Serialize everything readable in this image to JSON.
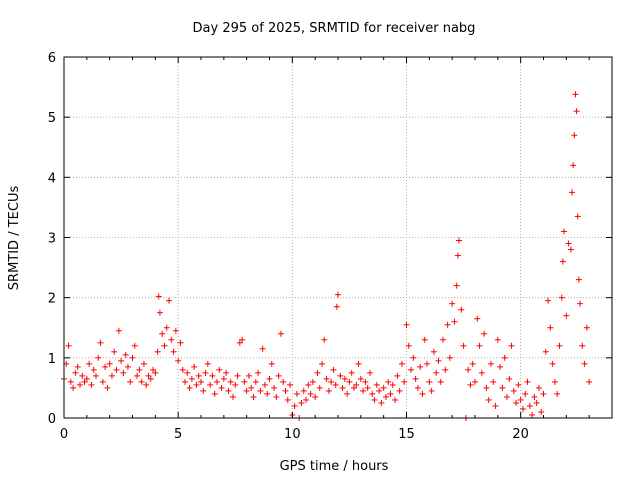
{
  "chart_data": {
    "type": "scatter",
    "title": "Day 295 of 2025, SRMTID for receiver nabg",
    "xlabel": "GPS time / hours",
    "ylabel": "SRMTID / TECUs",
    "xlim": [
      0,
      24
    ],
    "ylim": [
      0,
      6
    ],
    "x_ticks": [
      "0",
      "5",
      "10",
      "15",
      "20"
    ],
    "y_ticks": [
      "0",
      "1",
      "2",
      "3",
      "4",
      "5",
      "6"
    ],
    "grid": true,
    "marker": "+",
    "series": [
      {
        "name": "SRMTID",
        "color": "#ff0000",
        "points": [
          [
            0.0,
            0.65
          ],
          [
            0.1,
            0.9
          ],
          [
            0.2,
            1.2
          ],
          [
            0.3,
            0.6
          ],
          [
            0.4,
            0.5
          ],
          [
            0.5,
            0.75
          ],
          [
            0.6,
            0.85
          ],
          [
            0.7,
            0.55
          ],
          [
            0.8,
            0.7
          ],
          [
            0.9,
            0.6
          ],
          [
            1.0,
            0.65
          ],
          [
            1.1,
            0.9
          ],
          [
            1.2,
            0.55
          ],
          [
            1.3,
            0.8
          ],
          [
            1.4,
            0.7
          ],
          [
            1.5,
            1.0
          ],
          [
            1.6,
            1.25
          ],
          [
            1.7,
            0.6
          ],
          [
            1.8,
            0.85
          ],
          [
            1.9,
            0.5
          ],
          [
            2.0,
            0.9
          ],
          [
            2.1,
            0.7
          ],
          [
            2.2,
            1.1
          ],
          [
            2.3,
            0.8
          ],
          [
            2.4,
            1.45
          ],
          [
            2.5,
            0.95
          ],
          [
            2.6,
            0.75
          ],
          [
            2.7,
            1.05
          ],
          [
            2.8,
            0.85
          ],
          [
            2.9,
            0.6
          ],
          [
            3.0,
            1.0
          ],
          [
            3.1,
            1.2
          ],
          [
            3.2,
            0.7
          ],
          [
            3.3,
            0.8
          ],
          [
            3.4,
            0.6
          ],
          [
            3.5,
            0.9
          ],
          [
            3.6,
            0.55
          ],
          [
            3.7,
            0.7
          ],
          [
            3.8,
            0.65
          ],
          [
            3.9,
            0.8
          ],
          [
            4.0,
            0.75
          ],
          [
            4.1,
            1.1
          ],
          [
            4.15,
            2.02
          ],
          [
            4.2,
            1.75
          ],
          [
            4.3,
            1.4
          ],
          [
            4.4,
            1.2
          ],
          [
            4.5,
            1.5
          ],
          [
            4.6,
            1.95
          ],
          [
            4.7,
            1.3
          ],
          [
            4.8,
            1.1
          ],
          [
            4.9,
            1.45
          ],
          [
            5.0,
            0.95
          ],
          [
            5.1,
            1.25
          ],
          [
            5.2,
            0.8
          ],
          [
            5.3,
            0.6
          ],
          [
            5.4,
            0.75
          ],
          [
            5.5,
            0.5
          ],
          [
            5.6,
            0.65
          ],
          [
            5.7,
            0.85
          ],
          [
            5.8,
            0.55
          ],
          [
            5.9,
            0.7
          ],
          [
            6.0,
            0.6
          ],
          [
            6.1,
            0.45
          ],
          [
            6.2,
            0.75
          ],
          [
            6.3,
            0.9
          ],
          [
            6.4,
            0.55
          ],
          [
            6.5,
            0.7
          ],
          [
            6.6,
            0.4
          ],
          [
            6.7,
            0.6
          ],
          [
            6.8,
            0.8
          ],
          [
            6.9,
            0.5
          ],
          [
            7.0,
            0.65
          ],
          [
            7.1,
            0.75
          ],
          [
            7.2,
            0.45
          ],
          [
            7.3,
            0.6
          ],
          [
            7.4,
            0.35
          ],
          [
            7.5,
            0.55
          ],
          [
            7.6,
            0.7
          ],
          [
            7.7,
            1.25
          ],
          [
            7.8,
            1.3
          ],
          [
            7.9,
            0.6
          ],
          [
            8.0,
            0.45
          ],
          [
            8.1,
            0.7
          ],
          [
            8.2,
            0.5
          ],
          [
            8.3,
            0.35
          ],
          [
            8.4,
            0.6
          ],
          [
            8.5,
            0.75
          ],
          [
            8.6,
            0.45
          ],
          [
            8.7,
            1.15
          ],
          [
            8.8,
            0.55
          ],
          [
            8.9,
            0.4
          ],
          [
            9.0,
            0.65
          ],
          [
            9.1,
            0.9
          ],
          [
            9.2,
            0.5
          ],
          [
            9.3,
            0.35
          ],
          [
            9.4,
            0.7
          ],
          [
            9.5,
            1.4
          ],
          [
            9.6,
            0.6
          ],
          [
            9.7,
            0.45
          ],
          [
            9.8,
            0.3
          ],
          [
            9.9,
            0.55
          ],
          [
            10.0,
            0.05
          ],
          [
            10.1,
            0.2
          ],
          [
            10.2,
            0.4
          ],
          [
            10.3,
            0.0
          ],
          [
            10.4,
            0.25
          ],
          [
            10.5,
            0.45
          ],
          [
            10.6,
            0.3
          ],
          [
            10.7,
            0.55
          ],
          [
            10.8,
            0.4
          ],
          [
            10.9,
            0.6
          ],
          [
            11.0,
            0.35
          ],
          [
            11.1,
            0.75
          ],
          [
            11.2,
            0.5
          ],
          [
            11.3,
            0.9
          ],
          [
            11.4,
            1.3
          ],
          [
            11.5,
            0.65
          ],
          [
            11.6,
            0.45
          ],
          [
            11.7,
            0.6
          ],
          [
            11.8,
            0.8
          ],
          [
            11.9,
            0.55
          ],
          [
            11.95,
            1.85
          ],
          [
            12.0,
            2.05
          ],
          [
            12.1,
            0.7
          ],
          [
            12.2,
            0.5
          ],
          [
            12.3,
            0.65
          ],
          [
            12.4,
            0.4
          ],
          [
            12.5,
            0.6
          ],
          [
            12.6,
            0.75
          ],
          [
            12.7,
            0.5
          ],
          [
            12.8,
            0.55
          ],
          [
            12.9,
            0.9
          ],
          [
            13.0,
            0.65
          ],
          [
            13.1,
            0.45
          ],
          [
            13.2,
            0.6
          ],
          [
            13.3,
            0.5
          ],
          [
            13.4,
            0.75
          ],
          [
            13.5,
            0.4
          ],
          [
            13.6,
            0.3
          ],
          [
            13.7,
            0.55
          ],
          [
            13.8,
            0.45
          ],
          [
            13.9,
            0.25
          ],
          [
            14.0,
            0.5
          ],
          [
            14.1,
            0.35
          ],
          [
            14.2,
            0.6
          ],
          [
            14.3,
            0.4
          ],
          [
            14.4,
            0.55
          ],
          [
            14.5,
            0.3
          ],
          [
            14.6,
            0.7
          ],
          [
            14.7,
            0.45
          ],
          [
            14.8,
            0.9
          ],
          [
            14.9,
            0.6
          ],
          [
            15.0,
            1.55
          ],
          [
            15.1,
            1.2
          ],
          [
            15.2,
            0.8
          ],
          [
            15.3,
            1.0
          ],
          [
            15.4,
            0.65
          ],
          [
            15.5,
            0.5
          ],
          [
            15.6,
            0.85
          ],
          [
            15.7,
            0.4
          ],
          [
            15.8,
            1.3
          ],
          [
            15.9,
            0.9
          ],
          [
            16.0,
            0.6
          ],
          [
            16.1,
            0.45
          ],
          [
            16.2,
            1.1
          ],
          [
            16.3,
            0.75
          ],
          [
            16.4,
            0.95
          ],
          [
            16.5,
            0.6
          ],
          [
            16.6,
            1.3
          ],
          [
            16.7,
            0.8
          ],
          [
            16.8,
            1.55
          ],
          [
            16.9,
            1.0
          ],
          [
            17.0,
            1.9
          ],
          [
            17.1,
            1.6
          ],
          [
            17.2,
            2.2
          ],
          [
            17.25,
            2.7
          ],
          [
            17.3,
            2.95
          ],
          [
            17.4,
            1.8
          ],
          [
            17.5,
            1.2
          ],
          [
            17.6,
            0.0
          ],
          [
            17.7,
            0.8
          ],
          [
            17.8,
            0.55
          ],
          [
            17.9,
            0.9
          ],
          [
            18.0,
            0.6
          ],
          [
            18.1,
            1.65
          ],
          [
            18.2,
            1.2
          ],
          [
            18.3,
            0.75
          ],
          [
            18.4,
            1.4
          ],
          [
            18.5,
            0.5
          ],
          [
            18.6,
            0.3
          ],
          [
            18.7,
            0.9
          ],
          [
            18.8,
            0.6
          ],
          [
            18.9,
            0.2
          ],
          [
            19.0,
            1.3
          ],
          [
            19.1,
            0.85
          ],
          [
            19.2,
            0.5
          ],
          [
            19.3,
            1.0
          ],
          [
            19.4,
            0.35
          ],
          [
            19.5,
            0.65
          ],
          [
            19.6,
            1.2
          ],
          [
            19.7,
            0.45
          ],
          [
            19.8,
            0.25
          ],
          [
            19.9,
            0.55
          ],
          [
            20.0,
            0.3
          ],
          [
            20.1,
            0.15
          ],
          [
            20.2,
            0.4
          ],
          [
            20.3,
            0.6
          ],
          [
            20.4,
            0.2
          ],
          [
            20.5,
            0.05
          ],
          [
            20.6,
            0.35
          ],
          [
            20.7,
            0.25
          ],
          [
            20.8,
            0.5
          ],
          [
            20.9,
            0.1
          ],
          [
            21.0,
            0.4
          ],
          [
            21.1,
            1.1
          ],
          [
            21.2,
            1.95
          ],
          [
            21.3,
            1.5
          ],
          [
            21.4,
            0.9
          ],
          [
            21.5,
            0.6
          ],
          [
            21.6,
            0.4
          ],
          [
            21.7,
            1.2
          ],
          [
            21.8,
            2.0
          ],
          [
            21.85,
            2.6
          ],
          [
            21.9,
            3.1
          ],
          [
            22.0,
            1.7
          ],
          [
            22.1,
            2.9
          ],
          [
            22.2,
            2.8
          ],
          [
            22.25,
            3.75
          ],
          [
            22.3,
            4.2
          ],
          [
            22.35,
            4.7
          ],
          [
            22.4,
            5.38
          ],
          [
            22.45,
            5.1
          ],
          [
            22.5,
            3.35
          ],
          [
            22.55,
            2.3
          ],
          [
            22.6,
            1.9
          ],
          [
            22.7,
            1.2
          ],
          [
            22.8,
            0.9
          ],
          [
            22.9,
            1.5
          ],
          [
            23.0,
            0.6
          ]
        ]
      }
    ]
  }
}
